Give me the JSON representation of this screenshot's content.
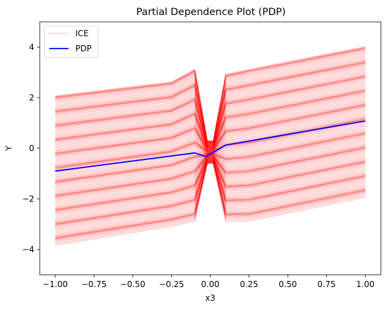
{
  "chart_data": {
    "type": "line",
    "title": "Partial Dependence Plot (PDP)",
    "xlabel": "x3",
    "ylabel": "Y",
    "xlim": [
      -1.1,
      1.1
    ],
    "ylim": [
      -5,
      5
    ],
    "xticks": [
      -1.0,
      -0.75,
      -0.5,
      -0.25,
      0.0,
      0.25,
      0.5,
      0.75,
      1.0
    ],
    "xtick_labels": [
      "−1.00",
      "−0.75",
      "−0.50",
      "−0.25",
      "0.00",
      "0.25",
      "0.50",
      "0.75",
      "1.00"
    ],
    "yticks": [
      -4,
      -2,
      0,
      2,
      4
    ],
    "ytick_labels": [
      "−4",
      "−2",
      "0",
      "2",
      "4"
    ],
    "grid": false,
    "legend": {
      "position": "top-left",
      "entries": [
        "ICE",
        "PDP"
      ]
    },
    "series": [
      {
        "name": "ICE",
        "color": "#ff0000",
        "style": "many translucent individual curves",
        "x": [
          -1.0,
          -0.25,
          -0.1,
          -0.02,
          0.02,
          0.1,
          0.25,
          1.0
        ],
        "upper_envelope": [
          2.15,
          2.7,
          3.2,
          0.3,
          0.3,
          3.0,
          3.2,
          4.1
        ],
        "lower_envelope": [
          -3.85,
          -3.1,
          -2.9,
          -0.6,
          -0.6,
          -2.9,
          -2.9,
          -1.95
        ]
      },
      {
        "name": "PDP",
        "color": "#0000ff",
        "x": [
          -1.0,
          -0.1,
          -0.03,
          0.1,
          1.0
        ],
        "y": [
          -0.9,
          -0.18,
          -0.33,
          0.13,
          1.08
        ]
      }
    ]
  }
}
